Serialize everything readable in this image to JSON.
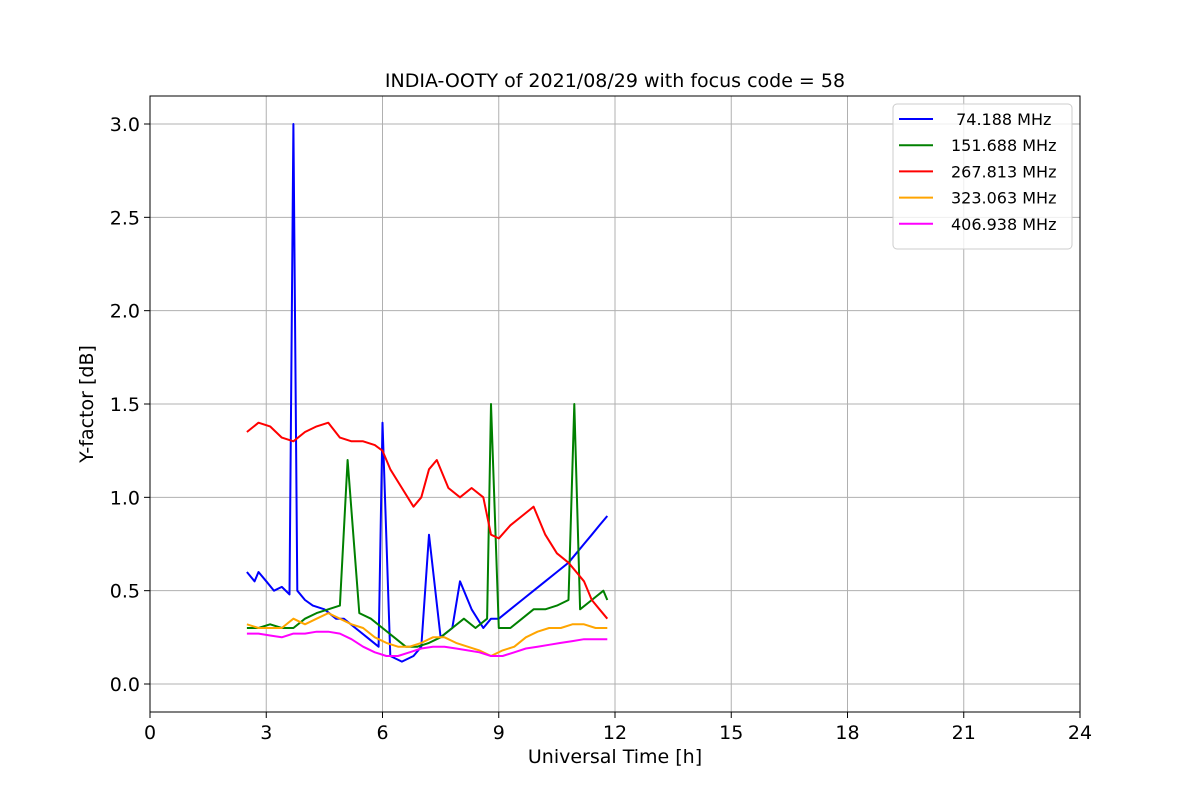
{
  "chart_data": {
    "type": "line",
    "title": "INDIA-OOTY of 2021/08/29 with focus code = 58",
    "xlabel": "Universal Time [h]",
    "ylabel": "Y-factor [dB]",
    "xlim": [
      0,
      24
    ],
    "ylim": [
      -0.15,
      3.15
    ],
    "xticks": [
      0,
      3,
      6,
      9,
      12,
      15,
      18,
      21,
      24
    ],
    "xtick_labels": [
      "0",
      "3",
      "6",
      "9",
      "12",
      "15",
      "18",
      "21",
      "24"
    ],
    "yticks": [
      0.0,
      0.5,
      1.0,
      1.5,
      2.0,
      2.5,
      3.0
    ],
    "ytick_labels": [
      "0.0",
      "0.5",
      "1.0",
      "1.5",
      "2.0",
      "2.5",
      "3.0"
    ],
    "grid": true,
    "legend_position": "top-right",
    "series": [
      {
        "name": " 74.188 MHz",
        "color": "#0000ff",
        "x": [
          2.5,
          2.7,
          2.8,
          3.0,
          3.2,
          3.4,
          3.6,
          3.7,
          3.8,
          4.0,
          4.2,
          4.5,
          4.8,
          5.0,
          5.3,
          5.6,
          5.9,
          6.0,
          6.2,
          6.5,
          6.8,
          7.0,
          7.2,
          7.5,
          7.8,
          8.0,
          8.3,
          8.6,
          8.8,
          9.0,
          9.3,
          9.6,
          9.9,
          10.2,
          10.5,
          10.8,
          11.0,
          11.2,
          11.4,
          11.6,
          11.8
        ],
        "y": [
          0.6,
          0.55,
          0.6,
          0.55,
          0.5,
          0.52,
          0.48,
          3.0,
          0.5,
          0.45,
          0.42,
          0.4,
          0.35,
          0.35,
          0.3,
          0.25,
          0.2,
          1.4,
          0.15,
          0.12,
          0.15,
          0.2,
          0.8,
          0.25,
          0.3,
          0.55,
          0.4,
          0.3,
          0.35,
          0.35,
          0.4,
          0.45,
          0.5,
          0.55,
          0.6,
          0.65,
          0.7,
          0.75,
          0.8,
          0.85,
          0.9
        ]
      },
      {
        "name": "151.688 MHz",
        "color": "#008000",
        "x": [
          2.5,
          2.8,
          3.1,
          3.4,
          3.7,
          4.0,
          4.3,
          4.6,
          4.9,
          5.1,
          5.4,
          5.7,
          6.0,
          6.3,
          6.6,
          6.9,
          7.2,
          7.5,
          7.8,
          8.1,
          8.4,
          8.7,
          8.8,
          9.0,
          9.3,
          9.6,
          9.9,
          10.2,
          10.5,
          10.8,
          10.95,
          11.1,
          11.4,
          11.7,
          11.8
        ],
        "y": [
          0.3,
          0.3,
          0.32,
          0.3,
          0.3,
          0.35,
          0.38,
          0.4,
          0.42,
          1.2,
          0.38,
          0.35,
          0.3,
          0.25,
          0.2,
          0.2,
          0.22,
          0.25,
          0.3,
          0.35,
          0.3,
          0.35,
          1.5,
          0.3,
          0.3,
          0.35,
          0.4,
          0.4,
          0.42,
          0.45,
          1.5,
          0.4,
          0.45,
          0.5,
          0.45
        ]
      },
      {
        "name": "267.813 MHz",
        "color": "#ff0000",
        "x": [
          2.5,
          2.8,
          3.1,
          3.4,
          3.7,
          4.0,
          4.3,
          4.6,
          4.9,
          5.2,
          5.5,
          5.8,
          6.0,
          6.2,
          6.5,
          6.8,
          7.0,
          7.2,
          7.4,
          7.7,
          8.0,
          8.3,
          8.6,
          8.8,
          9.0,
          9.3,
          9.6,
          9.9,
          10.2,
          10.5,
          10.8,
          11.0,
          11.2,
          11.4,
          11.6,
          11.8
        ],
        "y": [
          1.35,
          1.4,
          1.38,
          1.32,
          1.3,
          1.35,
          1.38,
          1.4,
          1.32,
          1.3,
          1.3,
          1.28,
          1.25,
          1.15,
          1.05,
          0.95,
          1.0,
          1.15,
          1.2,
          1.05,
          1.0,
          1.05,
          1.0,
          0.8,
          0.78,
          0.85,
          0.9,
          0.95,
          0.8,
          0.7,
          0.65,
          0.6,
          0.55,
          0.45,
          0.4,
          0.35
        ]
      },
      {
        "name": "323.063 MHz",
        "color": "#ffa500",
        "x": [
          2.5,
          2.8,
          3.1,
          3.4,
          3.7,
          4.0,
          4.3,
          4.6,
          4.9,
          5.2,
          5.5,
          5.8,
          6.1,
          6.4,
          6.7,
          7.0,
          7.3,
          7.6,
          7.9,
          8.2,
          8.5,
          8.8,
          9.1,
          9.4,
          9.7,
          10.0,
          10.3,
          10.6,
          10.9,
          11.2,
          11.5,
          11.8
        ],
        "y": [
          0.32,
          0.3,
          0.3,
          0.3,
          0.35,
          0.32,
          0.35,
          0.38,
          0.35,
          0.32,
          0.3,
          0.25,
          0.22,
          0.2,
          0.2,
          0.22,
          0.25,
          0.25,
          0.22,
          0.2,
          0.18,
          0.15,
          0.18,
          0.2,
          0.25,
          0.28,
          0.3,
          0.3,
          0.32,
          0.32,
          0.3,
          0.3
        ]
      },
      {
        "name": "406.938 MHz",
        "color": "#ff00ff",
        "x": [
          2.5,
          2.8,
          3.1,
          3.4,
          3.7,
          4.0,
          4.3,
          4.6,
          4.9,
          5.2,
          5.5,
          5.8,
          6.1,
          6.4,
          6.7,
          7.0,
          7.3,
          7.6,
          7.9,
          8.2,
          8.5,
          8.8,
          9.1,
          9.4,
          9.7,
          10.0,
          10.3,
          10.6,
          10.9,
          11.2,
          11.5,
          11.8
        ],
        "y": [
          0.27,
          0.27,
          0.26,
          0.25,
          0.27,
          0.27,
          0.28,
          0.28,
          0.27,
          0.24,
          0.2,
          0.17,
          0.15,
          0.15,
          0.17,
          0.19,
          0.2,
          0.2,
          0.19,
          0.18,
          0.17,
          0.15,
          0.15,
          0.17,
          0.19,
          0.2,
          0.21,
          0.22,
          0.23,
          0.24,
          0.24,
          0.24
        ]
      }
    ]
  }
}
